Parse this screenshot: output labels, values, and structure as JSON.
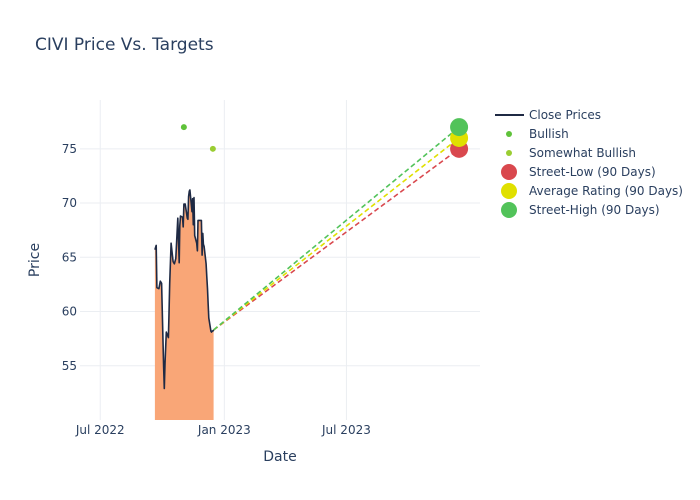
{
  "chart_data": {
    "type": "line",
    "title": "CIVI Price Vs. Targets",
    "xlabel": "Date",
    "ylabel": "Price",
    "x_range": [
      "2022-06-01",
      "2024-01-15"
    ],
    "y_range": [
      50.0,
      79.5
    ],
    "x_ticks": [
      {
        "date": "2022-07-01",
        "label": "Jul 2022"
      },
      {
        "date": "2023-01-01",
        "label": "Jan 2023"
      },
      {
        "date": "2023-07-01",
        "label": "Jul 2023"
      }
    ],
    "y_ticks": [
      55,
      60,
      65,
      70,
      75
    ],
    "grid": true,
    "legend_position": "right",
    "colors": {
      "close": "#1f2a44",
      "fill": "#f9a677",
      "bullish": "#5fc23a",
      "somewhat_bullish": "#9acd32",
      "street_low": "#d9484e",
      "average": "#e0e000",
      "street_high": "#52c35a",
      "grid": "#ebeef2",
      "zero_line": "#ffffff"
    },
    "legend": [
      {
        "key": "close",
        "label": "Close Prices",
        "marker": "line"
      },
      {
        "key": "bullish",
        "label": "Bullish",
        "marker": "small-dot"
      },
      {
        "key": "somewhat_bullish",
        "label": "Somewhat Bullish",
        "marker": "small-dot"
      },
      {
        "key": "street_low",
        "label": "Street-Low (90 Days)",
        "marker": "large-dot"
      },
      {
        "key": "average",
        "label": "Average Rating (90 Days)",
        "marker": "large-dot"
      },
      {
        "key": "street_high",
        "label": "Street-High (90 Days)",
        "marker": "large-dot"
      }
    ],
    "series": [
      {
        "name": "Close Prices",
        "key": "close",
        "x": [
          "2022-09-20",
          "2022-09-22",
          "2022-09-23",
          "2022-09-26",
          "2022-09-28",
          "2022-09-30",
          "2022-10-03",
          "2022-10-04",
          "2022-10-05",
          "2022-10-07",
          "2022-10-10",
          "2022-10-11",
          "2022-10-12",
          "2022-10-14",
          "2022-10-17",
          "2022-10-19",
          "2022-10-21",
          "2022-10-24",
          "2022-10-26",
          "2022-10-27",
          "2022-10-28",
          "2022-10-31",
          "2022-11-01",
          "2022-11-02",
          "2022-11-03",
          "2022-11-04",
          "2022-11-07",
          "2022-11-08",
          "2022-11-09",
          "2022-11-10",
          "2022-11-11",
          "2022-11-14",
          "2022-11-15",
          "2022-11-16",
          "2022-11-17",
          "2022-11-18",
          "2022-11-21",
          "2022-11-22",
          "2022-11-23",
          "2022-11-25",
          "2022-11-28",
          "2022-11-29",
          "2022-11-30",
          "2022-12-01",
          "2022-12-02",
          "2022-12-05",
          "2022-12-06",
          "2022-12-07",
          "2022-12-08",
          "2022-12-09",
          "2022-12-12",
          "2022-12-13",
          "2022-12-14",
          "2022-12-15",
          "2022-12-16"
        ],
        "y": [
          65.7,
          66.1,
          62.2,
          62.1,
          62.8,
          62.6,
          55.0,
          52.9,
          55.2,
          58.1,
          57.6,
          59.8,
          62.6,
          66.3,
          64.6,
          64.4,
          64.9,
          68.6,
          64.5,
          67.9,
          68.8,
          68.7,
          67.8,
          69.9,
          69.9,
          69.9,
          68.6,
          68.5,
          70.6,
          71.1,
          71.2,
          69.2,
          70.4,
          68.0,
          70.5,
          67.0,
          66.3,
          65.6,
          68.4,
          68.4,
          68.4,
          65.2,
          67.2,
          66.2,
          66.0,
          64.4,
          63.2,
          62.1,
          60.6,
          59.4,
          58.2,
          58.1,
          58.2,
          58.2,
          58.3
        ]
      },
      {
        "name": "Bullish",
        "key": "bullish",
        "points": [
          {
            "x": "2022-11-02",
            "y": 77.0
          }
        ]
      },
      {
        "name": "Somewhat Bullish",
        "key": "somewhat_bullish",
        "points": [
          {
            "x": "2022-12-15",
            "y": 75.0
          }
        ]
      },
      {
        "name": "Street-Low (90 Days)",
        "key": "street_low",
        "from": {
          "x": "2022-12-16",
          "y": 58.3
        },
        "to": {
          "x": "2023-12-15",
          "y": 75.0
        }
      },
      {
        "name": "Average Rating (90 Days)",
        "key": "average",
        "from": {
          "x": "2022-12-16",
          "y": 58.3
        },
        "to": {
          "x": "2023-12-15",
          "y": 76.0
        }
      },
      {
        "name": "Street-High (90 Days)",
        "key": "street_high",
        "from": {
          "x": "2022-12-16",
          "y": 58.3
        },
        "to": {
          "x": "2023-12-15",
          "y": 77.0
        }
      }
    ]
  }
}
